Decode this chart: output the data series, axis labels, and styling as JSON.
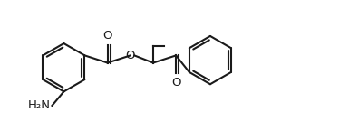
{
  "bg_color": "#ffffff",
  "line_color": "#1a1a1a",
  "line_width": 1.5,
  "font_size": 9.5,
  "fig_width": 3.74,
  "fig_height": 1.55,
  "dpi": 100,
  "xlim": [
    0,
    10
  ],
  "ylim": [
    0,
    4.15
  ]
}
